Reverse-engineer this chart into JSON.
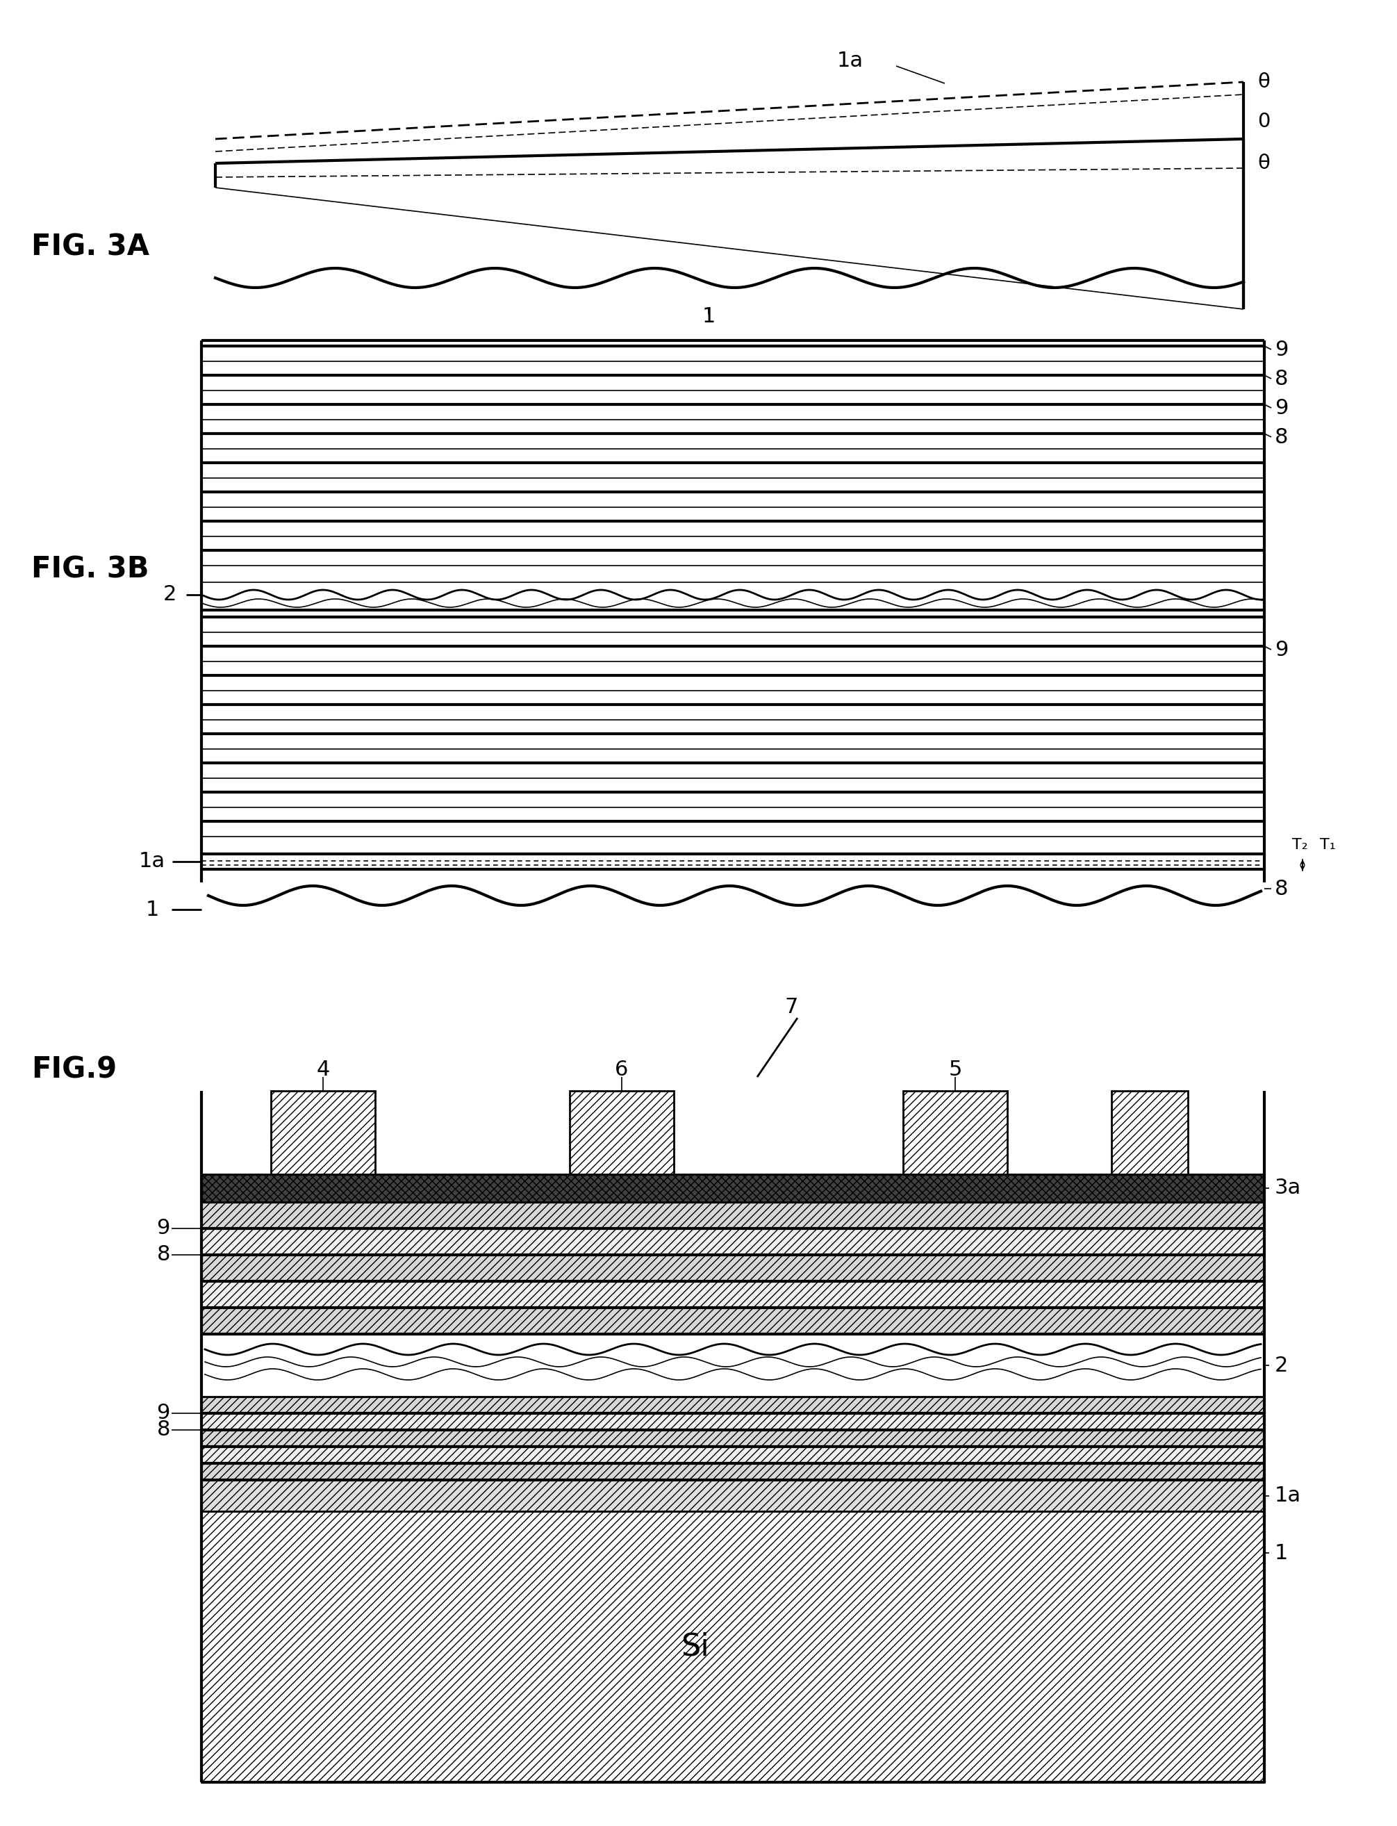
{
  "bg_color": "#ffffff",
  "fig3a_label": "FIG. 3A",
  "fig3b_label": "FIG. 3B",
  "fig9_label": "FIG.9",
  "fig_label_fontsize": 30,
  "ann_fontsize": 22,
  "lw_thin": 1.2,
  "lw_med": 2.0,
  "lw_thick": 3.0
}
